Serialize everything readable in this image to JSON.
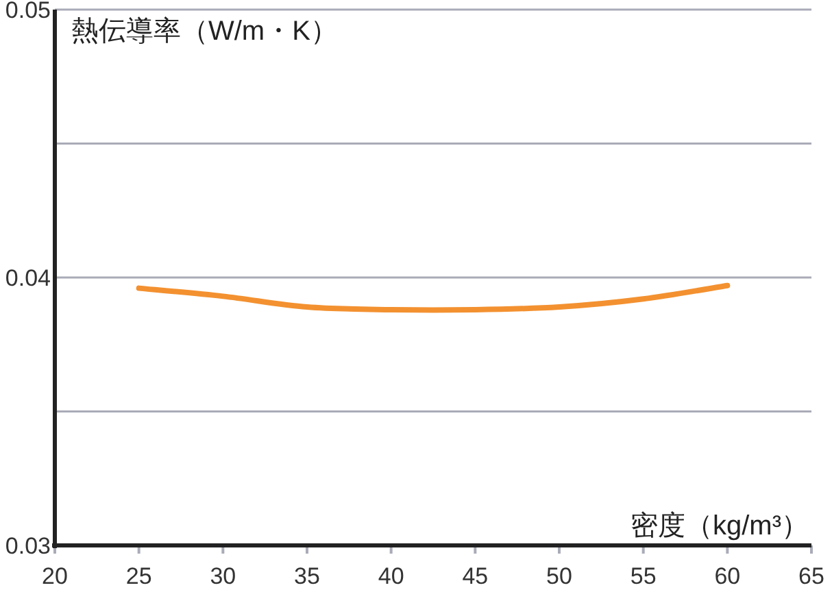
{
  "chart_data": {
    "type": "line",
    "xlabel": "密度（kg/m³）",
    "ylabel": "熱伝導率（W/m・K）",
    "x": [
      25,
      30,
      35,
      40,
      45,
      50,
      55,
      60
    ],
    "series": [
      {
        "color": "#f39130",
        "values": [
          0.0396,
          0.0393,
          0.0389,
          0.0388,
          0.0388,
          0.0389,
          0.0392,
          0.0397
        ]
      }
    ],
    "xlim": [
      20,
      65
    ],
    "xticks": [
      20,
      25,
      30,
      35,
      40,
      45,
      50,
      55,
      60,
      65
    ],
    "ylim": [
      0.03,
      0.05
    ],
    "yticks": [
      0.03,
      {
        "value": 0.035,
        "label": null
      },
      0.04,
      {
        "value": 0.045,
        "label": null
      },
      0.05
    ],
    "grid": "y",
    "marker": "none",
    "line_style": "solid"
  }
}
